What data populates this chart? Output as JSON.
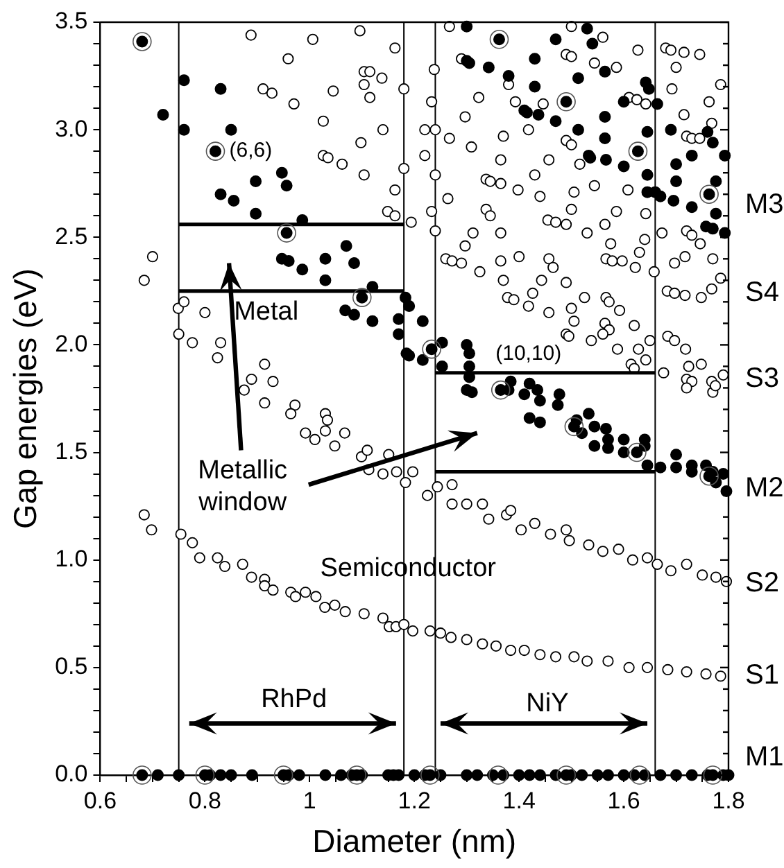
{
  "chart_data": {
    "type": "scatter",
    "xlabel": "Diameter (nm)",
    "ylabel": "Gap energies (eV)",
    "marker": "circle",
    "xlim": [
      0.6,
      1.8
    ],
    "ylim": [
      0,
      3.5
    ],
    "xticks": [
      0.6,
      {
        "value": 0.65,
        "label": null
      },
      {
        "value": 0.7,
        "label": null
      },
      {
        "value": 0.75,
        "label": null
      },
      0.8,
      {
        "value": 0.85,
        "label": null
      },
      {
        "value": 0.9,
        "label": null
      },
      {
        "value": 0.95,
        "label": null
      },
      1,
      {
        "value": 1.05,
        "label": null
      },
      {
        "value": 1.1,
        "label": null
      },
      {
        "value": 1.15,
        "label": null
      },
      1.2,
      {
        "value": 1.25,
        "label": null
      },
      {
        "value": 1.3,
        "label": null
      },
      {
        "value": 1.35,
        "label": null
      },
      1.4,
      {
        "value": 1.45,
        "label": null
      },
      {
        "value": 1.5,
        "label": null
      },
      {
        "value": 1.55,
        "label": null
      },
      1.6,
      {
        "value": 1.65,
        "label": null
      },
      {
        "value": 1.7,
        "label": null
      },
      {
        "value": 1.75,
        "label": null
      },
      1.8
    ],
    "yticks": [
      {
        "value": 0,
        "label": "0.0"
      },
      {
        "value": 0.1,
        "label": null
      },
      {
        "value": 0.2,
        "label": null
      },
      {
        "value": 0.3,
        "label": null
      },
      {
        "value": 0.4,
        "label": null
      },
      0.5,
      {
        "value": 0.6,
        "label": null
      },
      {
        "value": 0.7,
        "label": null
      },
      {
        "value": 0.8,
        "label": null
      },
      {
        "value": 0.9,
        "label": null
      },
      {
        "value": 1,
        "label": "1.0"
      },
      {
        "value": 1.1,
        "label": null
      },
      {
        "value": 1.2,
        "label": null
      },
      {
        "value": 1.3,
        "label": null
      },
      {
        "value": 1.4,
        "label": null
      },
      1.5,
      {
        "value": 1.6,
        "label": null
      },
      {
        "value": 1.7,
        "label": null
      },
      {
        "value": 1.8,
        "label": null
      },
      {
        "value": 1.9,
        "label": null
      },
      {
        "value": 2,
        "label": "2.0"
      },
      {
        "value": 2.1,
        "label": null
      },
      {
        "value": 2.2,
        "label": null
      },
      {
        "value": 2.3,
        "label": null
      },
      {
        "value": 2.4,
        "label": null
      },
      2.5,
      {
        "value": 2.6,
        "label": null
      },
      {
        "value": 2.7,
        "label": null
      },
      {
        "value": 2.8,
        "label": null
      },
      {
        "value": 2.9,
        "label": null
      },
      {
        "value": 3,
        "label": "3.0"
      },
      {
        "value": 3.1,
        "label": null
      },
      {
        "value": 3.2,
        "label": null
      },
      {
        "value": 3.3,
        "label": null
      },
      {
        "value": 3.4,
        "label": null
      },
      3.5
    ],
    "ref_lines": [
      {
        "axis": "x",
        "value": 0.75,
        "label": null
      },
      {
        "axis": "x",
        "value": 1.18,
        "label": null
      },
      {
        "axis": "x",
        "value": 1.24,
        "label": null
      },
      {
        "axis": "x",
        "value": 1.66,
        "label": null
      }
    ],
    "annotations": [
      {
        "text": "(6,6)",
        "x": 0.82,
        "y": 2.9
      },
      {
        "text": "(10,10)",
        "x": 1.365,
        "y": 1.79
      },
      "Metal",
      "Metallic window",
      "Semiconductor",
      "RhPd",
      "NiY",
      "M3",
      "S4",
      "S3",
      "M2",
      "S2",
      "S1",
      "M1"
    ],
    "series": [
      {
        "color": "#000000",
        "x": [
          0.684,
          0.698,
          0.754,
          0.776,
          0.79,
          0.824,
          0.838,
          0.872,
          0.889,
          0.914,
          0.914,
          0.93,
          0.964,
          0.973,
          0.992,
          1.012,
          1.029,
          1.048,
          1.068,
          1.104,
          1.14,
          1.152,
          1.165,
          1.18,
          1.197,
          1.23,
          1.25,
          1.27,
          1.3,
          1.33,
          1.356,
          1.384,
          1.41,
          1.44,
          1.47,
          1.505,
          1.53,
          1.57,
          1.61,
          1.645,
          1.684,
          1.72,
          1.757,
          1.785,
          0.749,
          0.76,
          0.8,
          0.75,
          0.776,
          0.83,
          0.824,
          0.914,
          0.889,
          0.93,
          0.875,
          0.914,
          0.972,
          0.964,
          0.992,
          1.01,
          1.03,
          1.034,
          1.03,
          1.048,
          1.067,
          1.099,
          1.11,
          1.113,
          1.14,
          1.151,
          1.166,
          1.183,
          1.197,
          1.225,
          1.244,
          1.272,
          1.272,
          1.3,
          1.33,
          1.342,
          1.376,
          1.384,
          1.404,
          1.43,
          1.46,
          1.49,
          1.496,
          1.533,
          1.56,
          1.59,
          1.617,
          1.645,
          1.664,
          1.69,
          1.72,
          1.75,
          1.776,
          1.796,
          0.888,
          1.006,
          1.096,
          1.163,
          0.959,
          1.104,
          1.115,
          1.138,
          1.104,
          0.911,
          0.928,
          1.045,
          1.115,
          1.18,
          0.97,
          1.026,
          1.14,
          1.098,
          1.026,
          1.035,
          1.062,
          1.104,
          1.18,
          1.163,
          1.149,
          1.163,
          1.194,
          0.7,
          0.684,
          1.238,
          1.233,
          1.22,
          1.24,
          1.22,
          1.24,
          1.267,
          1.264,
          1.233,
          1.24,
          1.26,
          1.267,
          1.5,
          1.56,
          1.29,
          1.49,
          1.5,
          1.544,
          1.586,
          1.627,
          1.68,
          1.69,
          1.715,
          1.745,
          1.7,
          1.785,
          1.692,
          1.38,
          1.323,
          1.393,
          1.446,
          1.61,
          1.625,
          1.642,
          1.715,
          1.763,
          1.297,
          1.418,
          1.37,
          1.309,
          1.49,
          1.5,
          1.72,
          1.73,
          1.745,
          1.768,
          1.365,
          1.457,
          1.516,
          1.43,
          1.337,
          1.345,
          1.365,
          1.398,
          1.44,
          1.505,
          1.544,
          1.608,
          1.337,
          1.345,
          1.5,
          1.586,
          1.642,
          1.455,
          1.47,
          1.49,
          1.53,
          1.564,
          1.575,
          1.64,
          1.72,
          1.73,
          1.746,
          1.673,
          1.312,
          1.365,
          1.297,
          1.272,
          1.29,
          1.325,
          1.365,
          1.4,
          1.457,
          1.465,
          1.566,
          1.578,
          1.597,
          1.622,
          1.63,
          1.658,
          1.697,
          1.717,
          1.77,
          1.37,
          1.443,
          1.49,
          1.426,
          1.378,
          1.39,
          1.418,
          1.457,
          1.5,
          1.525,
          1.566,
          1.572,
          1.592,
          1.683,
          1.697,
          1.717,
          1.748,
          1.768,
          1.785,
          1.505,
          1.564,
          1.572,
          1.62,
          1.49,
          1.495,
          1.538,
          1.56,
          1.588,
          1.628,
          1.642,
          1.65,
          1.684,
          1.697,
          1.718,
          1.676,
          1.724,
          1.748,
          1.72,
          1.73,
          1.768,
          1.79,
          1.614,
          1.62,
          1.72,
          1.77,
          1.775
        ],
        "values": [
          1.21,
          1.14,
          1.12,
          1.08,
          1.01,
          1.01,
          0.97,
          0.98,
          0.92,
          0.91,
          0.88,
          0.86,
          0.85,
          0.83,
          0.85,
          0.83,
          0.78,
          0.79,
          0.76,
          0.75,
          0.73,
          0.69,
          0.69,
          0.7,
          0.67,
          0.67,
          0.66,
          0.64,
          0.63,
          0.61,
          0.6,
          0.58,
          0.58,
          0.56,
          0.55,
          0.55,
          0.53,
          0.53,
          0.5,
          0.5,
          0.49,
          0.48,
          0.47,
          0.46,
          2.17,
          2.2,
          2.15,
          2.05,
          2.01,
          2.01,
          1.94,
          1.91,
          1.84,
          1.83,
          1.79,
          1.73,
          1.72,
          1.68,
          1.59,
          1.56,
          1.68,
          1.65,
          1.6,
          1.53,
          1.59,
          1.48,
          1.51,
          1.42,
          1.4,
          1.49,
          1.41,
          1.36,
          1.41,
          1.3,
          1.34,
          1.35,
          1.26,
          1.26,
          1.26,
          1.19,
          1.21,
          1.23,
          1.14,
          1.17,
          1.12,
          1.14,
          1.09,
          1.07,
          1.04,
          1.05,
          1.0,
          1.01,
          0.98,
          0.95,
          0.98,
          0.93,
          0.92,
          0.9,
          3.44,
          3.42,
          3.46,
          3.38,
          3.33,
          3.27,
          3.27,
          3.24,
          3.21,
          3.19,
          3.17,
          3.18,
          3.15,
          3.19,
          3.12,
          3.04,
          3.0,
          2.94,
          2.88,
          2.87,
          2.84,
          2.79,
          2.82,
          2.72,
          2.62,
          2.6,
          2.57,
          2.41,
          2.3,
          3.28,
          3.13,
          3.0,
          3.0,
          2.88,
          2.79,
          2.96,
          2.68,
          2.62,
          2.53,
          2.4,
          3.48,
          3.48,
          3.43,
          3.33,
          3.35,
          3.34,
          3.31,
          3.29,
          3.37,
          3.38,
          3.37,
          3.36,
          3.35,
          3.29,
          3.21,
          3.19,
          3.21,
          3.15,
          3.13,
          3.12,
          3.15,
          3.14,
          3.12,
          3.07,
          3.13,
          3.06,
          3.0,
          2.97,
          2.92,
          2.95,
          2.93,
          2.97,
          2.96,
          2.96,
          3.03,
          2.86,
          2.86,
          2.84,
          2.79,
          2.77,
          2.76,
          2.75,
          2.72,
          2.69,
          2.71,
          2.74,
          2.72,
          2.63,
          2.6,
          2.63,
          2.62,
          2.61,
          2.58,
          2.57,
          2.56,
          2.52,
          2.56,
          2.47,
          2.49,
          2.53,
          2.51,
          2.47,
          2.52,
          2.52,
          2.52,
          2.46,
          2.39,
          2.38,
          2.34,
          2.39,
          2.41,
          2.4,
          2.36,
          2.4,
          2.39,
          2.39,
          2.36,
          2.43,
          2.34,
          2.38,
          2.41,
          2.4,
          2.3,
          2.3,
          2.29,
          2.24,
          2.22,
          2.21,
          2.18,
          2.15,
          2.17,
          2.22,
          2.22,
          2.2,
          2.16,
          2.25,
          2.24,
          2.23,
          2.22,
          2.26,
          2.31,
          2.11,
          2.1,
          2.07,
          2.09,
          2.05,
          2.04,
          2.02,
          2.05,
          1.98,
          1.98,
          1.93,
          2.02,
          2.04,
          2.02,
          1.98,
          1.87,
          1.9,
          1.91,
          1.84,
          1.83,
          1.83,
          1.86,
          1.91,
          1.89,
          1.8,
          1.78,
          1.81
        ]
      },
      {
        "color": "#000000",
        "x": [
          0.68,
          0.71,
          0.75,
          0.8,
          0.81,
          0.83,
          0.85,
          0.89,
          0.95,
          0.96,
          0.98,
          1.03,
          1.06,
          1.08,
          1.09,
          1.1,
          1.15,
          1.16,
          1.17,
          1.2,
          1.22,
          1.23,
          1.25,
          1.3,
          1.32,
          1.35,
          1.37,
          1.4,
          1.42,
          1.44,
          1.47,
          1.49,
          1.5,
          1.52,
          1.55,
          1.57,
          1.6,
          1.62,
          1.64,
          1.67,
          1.7,
          1.73,
          1.76,
          1.77,
          1.79,
          1.8,
          0.72,
          0.76,
          0.83,
          0.76,
          0.85,
          0.82,
          0.947,
          0.897,
          0.956,
          0.83,
          0.855,
          0.897,
          0.986,
          0.956,
          1.07,
          0.947,
          0.96,
          0.986,
          1.03,
          1.085,
          1.03,
          1.12,
          1.1,
          1.068,
          1.085,
          1.12,
          1.17,
          1.183,
          1.19,
          1.216,
          1.17,
          1.185,
          1.19,
          1.216,
          1.233,
          1.253,
          1.253,
          0.68,
          1.3,
          1.305,
          1.305,
          1.305,
          1.3,
          1.31,
          1.365,
          1.384,
          1.42,
          1.41,
          1.435,
          1.44,
          1.474,
          1.38,
          1.42,
          1.44,
          1.477,
          1.505,
          1.51,
          1.533,
          1.544,
          1.52,
          1.544,
          1.566,
          1.57,
          1.57,
          1.6,
          1.6,
          1.625,
          1.64,
          1.64,
          1.645,
          1.67,
          1.7,
          1.7,
          1.73,
          1.73,
          1.757,
          1.763,
          1.77,
          1.776,
          1.79,
          1.796,
          1.3,
          1.362,
          1.47,
          1.53,
          1.54,
          1.3,
          1.305,
          1.342,
          1.38,
          1.43,
          1.43,
          1.513,
          1.564,
          1.49,
          1.41,
          1.415,
          1.437,
          1.47,
          1.513,
          1.564,
          1.564,
          1.6,
          1.533,
          1.536,
          1.566,
          1.6,
          1.627,
          1.645,
          1.642,
          1.648,
          1.664,
          1.645,
          1.645,
          1.66,
          1.67,
          1.69,
          1.7,
          1.7,
          1.695,
          1.73,
          1.73,
          1.76,
          1.77,
          1.776,
          1.763,
          1.776,
          1.757,
          1.77,
          1.793,
          1.793
        ],
        "values": [
          0,
          0,
          0,
          0,
          0,
          0,
          0,
          0,
          0,
          0,
          0,
          0,
          0,
          0,
          0,
          0,
          0,
          0,
          0,
          0,
          0,
          0,
          0,
          0,
          0,
          0,
          0,
          0,
          0,
          0,
          0,
          0,
          0,
          0,
          0,
          0,
          0,
          0,
          0,
          0,
          0,
          0,
          0,
          0,
          0,
          0,
          3.07,
          3.23,
          3.19,
          3.0,
          3.0,
          2.9,
          2.8,
          2.76,
          2.74,
          2.7,
          2.67,
          2.61,
          2.58,
          2.52,
          2.46,
          2.4,
          2.39,
          2.35,
          2.4,
          2.38,
          2.3,
          2.27,
          2.22,
          2.16,
          2.14,
          2.11,
          2.12,
          2.22,
          2.18,
          2.11,
          2.05,
          1.96,
          1.95,
          1.93,
          1.98,
          2.01,
          1.9,
          3.41,
          2.0,
          1.96,
          1.9,
          1.85,
          1.79,
          1.78,
          1.79,
          1.83,
          1.82,
          1.77,
          1.79,
          1.74,
          1.72,
          1.79,
          1.66,
          1.64,
          1.77,
          1.62,
          1.65,
          1.68,
          1.62,
          1.59,
          1.53,
          1.61,
          1.56,
          1.52,
          1.56,
          1.5,
          1.5,
          1.53,
          1.56,
          1.44,
          1.43,
          1.49,
          1.43,
          1.44,
          1.41,
          1.44,
          1.39,
          1.41,
          1.36,
          1.4,
          1.32,
          3.48,
          3.42,
          3.42,
          3.47,
          3.4,
          3.32,
          3.31,
          3.29,
          3.25,
          3.33,
          3.2,
          3.24,
          3.27,
          3.13,
          3.09,
          3.08,
          3.07,
          3.04,
          3.0,
          3.06,
          2.96,
          3.13,
          2.88,
          2.87,
          2.86,
          2.83,
          2.9,
          2.99,
          3.22,
          3.19,
          3.12,
          2.79,
          2.71,
          2.71,
          2.69,
          3.0,
          2.84,
          2.76,
          2.67,
          2.88,
          2.64,
          2.99,
          2.94,
          2.76,
          2.7,
          2.61,
          2.55,
          2.54,
          2.52,
          2.88
        ]
      },
      {
        "color": "#555555",
        "x": [
          0.68,
          0.82,
          0.956,
          1.1,
          1.233,
          1.362,
          1.49,
          1.627,
          1.763,
          1.365,
          1.505,
          1.625,
          1.763,
          0.68,
          0.8,
          0.95,
          1.09,
          1.23,
          1.36,
          1.49,
          1.63,
          1.77
        ],
        "values": [
          3.41,
          2.9,
          2.52,
          2.22,
          1.98,
          3.42,
          3.13,
          2.9,
          2.7,
          1.79,
          1.62,
          1.5,
          1.39,
          0,
          0,
          0,
          0,
          0,
          0,
          0,
          0,
          0
        ]
      },
      {
        "type": "line",
        "marker": "none",
        "color": "#000000",
        "x": [
          0.75,
          1.18
        ],
        "values": [
          2.25,
          2.25
        ]
      },
      {
        "type": "line",
        "marker": "none",
        "color": "#000000",
        "x": [
          0.75,
          1.18
        ],
        "values": [
          2.56,
          2.56
        ]
      },
      {
        "type": "line",
        "marker": "none",
        "color": "#000000",
        "x": [
          1.24,
          1.66
        ],
        "values": [
          1.87,
          1.87
        ]
      },
      {
        "type": "line",
        "marker": "none",
        "color": "#000000",
        "x": [
          1.24,
          1.66
        ],
        "values": [
          1.41,
          1.41
        ]
      }
    ]
  }
}
